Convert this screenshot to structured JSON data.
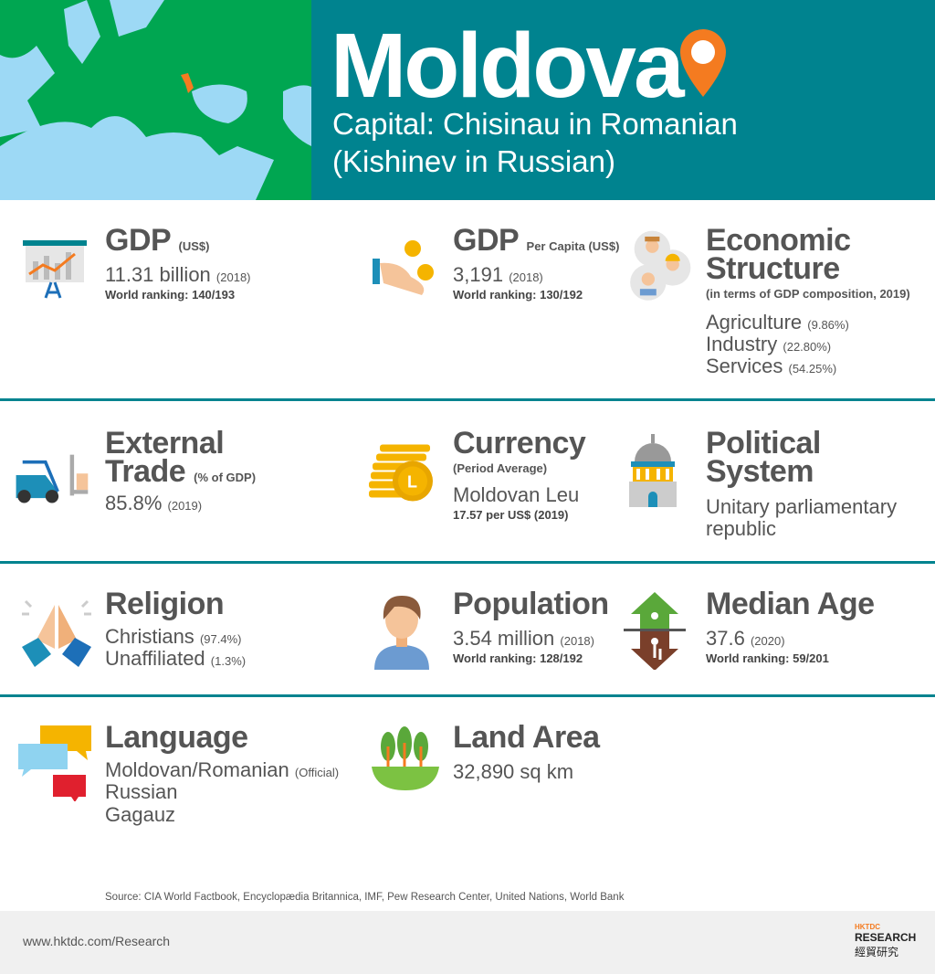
{
  "header": {
    "title": "Moldova",
    "capital_line1": "Capital: Chisinau in Romanian",
    "capital_line2": "(Kishinev in Russian)",
    "pin_icon": "location-pin-icon",
    "colors": {
      "band": "#00838f",
      "map_land": "#00a651",
      "map_water": "#9dd9f5",
      "highlight": "#f47b20"
    }
  },
  "gdp": {
    "title": "GDP",
    "unit": "(US$)",
    "value": "11.31 billion",
    "year": "(2018)",
    "ranking": "World ranking: 140/193",
    "icon": "presentation-chart-icon"
  },
  "gdp_per_capita": {
    "title": "GDP",
    "unit": "Per Capita (US$)",
    "value": "3,191",
    "year": "(2018)",
    "ranking": "World ranking: 130/192",
    "icon": "hand-coins-icon"
  },
  "economic_structure": {
    "title1": "Economic",
    "title2": "Structure",
    "note": "(in terms of GDP composition, 2019)",
    "icon": "workers-icon",
    "items": [
      {
        "label": "Agriculture",
        "value": "(9.86%)"
      },
      {
        "label": "Industry",
        "value": "(22.80%)"
      },
      {
        "label": "Services",
        "value": "(54.25%)"
      }
    ]
  },
  "external_trade": {
    "title1": "External",
    "title2": "Trade",
    "unit": "(% of GDP)",
    "value": "85.8%",
    "year": "(2019)",
    "icon": "forklift-icon"
  },
  "currency": {
    "title": "Currency",
    "note": "(Period Average)",
    "value": "Moldovan Leu",
    "rate": "17.57 per US$ (2019)",
    "icon": "coin-stack-icon"
  },
  "political_system": {
    "title1": "Political",
    "title2": "System",
    "value1": "Unitary parliamentary",
    "value2": "republic",
    "icon": "government-building-icon"
  },
  "religion": {
    "title": "Religion",
    "icon": "praying-hands-icon",
    "items": [
      {
        "label": "Christians",
        "value": "(97.4%)"
      },
      {
        "label": "Unaffiliated",
        "value": "(1.3%)"
      }
    ]
  },
  "population": {
    "title": "Population",
    "value": "3.54 million",
    "year": "(2018)",
    "ranking": "World ranking: 128/192",
    "icon": "person-icon"
  },
  "median_age": {
    "title": "Median Age",
    "value": "37.6",
    "year": "(2020)",
    "ranking": "World ranking: 59/201",
    "icon": "age-arrows-icon"
  },
  "language": {
    "title": "Language",
    "icon": "speech-bubbles-icon",
    "items": [
      {
        "label": "Moldovan/Romanian",
        "value": "(Official)"
      },
      {
        "label": "Russian",
        "value": ""
      },
      {
        "label": "Gagauz",
        "value": ""
      }
    ]
  },
  "land_area": {
    "title": "Land Area",
    "value": "32,890 sq km",
    "icon": "trees-land-icon"
  },
  "source": "Source: CIA World Factbook, Encyclopædia Britannica, IMF, Pew Research Center, United Nations, World Bank",
  "footer": {
    "url": "www.hktdc.com/Research",
    "logo_top": "HKTDC",
    "logo_main": "RESEARCH",
    "logo_chinese": "經貿研究"
  }
}
